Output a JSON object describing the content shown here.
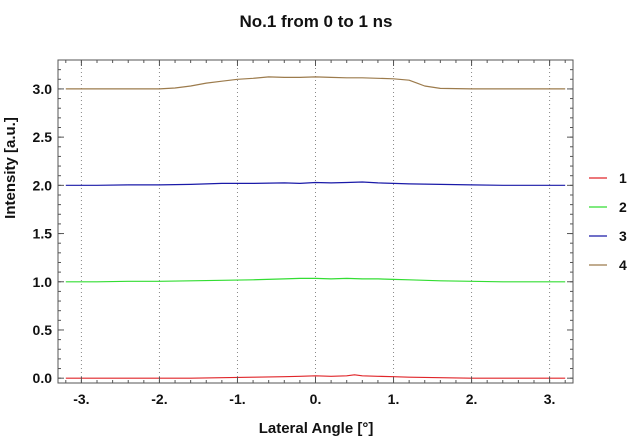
{
  "chart_data": {
    "type": "line",
    "title": "No.1  from 0 to 1 ns",
    "xlabel": "Lateral Angle [°]",
    "ylabel": "Intensity [a.u.]",
    "xlim": [
      -3.3,
      3.3
    ],
    "ylim": [
      -0.05,
      3.3
    ],
    "xticks": [
      -3,
      -2,
      -1,
      0,
      1,
      2,
      3
    ],
    "xtick_labels": [
      "-3.",
      "-2.",
      "-1.",
      "0.",
      "1.",
      "2.",
      "3."
    ],
    "yticks": [
      0.0,
      0.5,
      1.0,
      1.5,
      2.0,
      2.5,
      3.0
    ],
    "ytick_labels": [
      "0.0",
      "0.5",
      "1.0",
      "1.5",
      "2.0",
      "2.5",
      "3.0"
    ],
    "grid": "vertical dotted",
    "legend": "right",
    "series": [
      {
        "name": "1",
        "color": "#e0262a",
        "x": [
          -3.2,
          -2.8,
          -2.4,
          -2.0,
          -1.6,
          -1.2,
          -0.8,
          -0.4,
          -0.2,
          0.0,
          0.2,
          0.4,
          0.5,
          0.6,
          0.8,
          1.0,
          1.2,
          1.6,
          2.0,
          2.4,
          2.8,
          3.2
        ],
        "y": [
          0.0,
          0.0,
          0.0,
          0.0,
          0.0,
          0.005,
          0.01,
          0.015,
          0.02,
          0.025,
          0.02,
          0.025,
          0.035,
          0.025,
          0.02,
          0.015,
          0.01,
          0.005,
          0.0,
          0.0,
          0.0,
          0.0
        ]
      },
      {
        "name": "2",
        "color": "#33dd33",
        "x": [
          -3.2,
          -2.8,
          -2.4,
          -2.0,
          -1.6,
          -1.2,
          -0.8,
          -0.4,
          -0.2,
          0.0,
          0.2,
          0.4,
          0.6,
          0.8,
          1.0,
          1.2,
          1.6,
          2.0,
          2.4,
          2.8,
          3.2
        ],
        "y": [
          1.0,
          1.0,
          1.005,
          1.005,
          1.01,
          1.015,
          1.02,
          1.03,
          1.035,
          1.035,
          1.03,
          1.035,
          1.03,
          1.03,
          1.025,
          1.02,
          1.01,
          1.005,
          1.0,
          1.0,
          1.0
        ]
      },
      {
        "name": "3",
        "color": "#1a1aa8",
        "x": [
          -3.2,
          -2.8,
          -2.4,
          -2.0,
          -1.6,
          -1.2,
          -0.8,
          -0.4,
          -0.2,
          0.0,
          0.2,
          0.4,
          0.6,
          0.8,
          1.0,
          1.2,
          1.6,
          2.0,
          2.4,
          2.8,
          3.2
        ],
        "y": [
          2.0,
          2.0,
          2.005,
          2.005,
          2.01,
          2.02,
          2.02,
          2.025,
          2.02,
          2.03,
          2.025,
          2.03,
          2.035,
          2.025,
          2.02,
          2.015,
          2.01,
          2.005,
          2.0,
          2.0,
          2.0
        ]
      },
      {
        "name": "4",
        "color": "#9c7b4c",
        "x": [
          -3.2,
          -2.8,
          -2.4,
          -2.0,
          -1.8,
          -1.6,
          -1.4,
          -1.2,
          -1.0,
          -0.8,
          -0.6,
          -0.4,
          -0.2,
          0.0,
          0.2,
          0.4,
          0.6,
          0.8,
          1.0,
          1.2,
          1.3,
          1.4,
          1.6,
          2.0,
          2.4,
          2.8,
          3.2
        ],
        "y": [
          3.0,
          3.0,
          3.0,
          3.0,
          3.01,
          3.03,
          3.06,
          3.08,
          3.1,
          3.11,
          3.125,
          3.12,
          3.12,
          3.125,
          3.12,
          3.115,
          3.115,
          3.11,
          3.105,
          3.09,
          3.06,
          3.03,
          3.005,
          3.0,
          3.0,
          3.0,
          3.0
        ]
      }
    ]
  }
}
